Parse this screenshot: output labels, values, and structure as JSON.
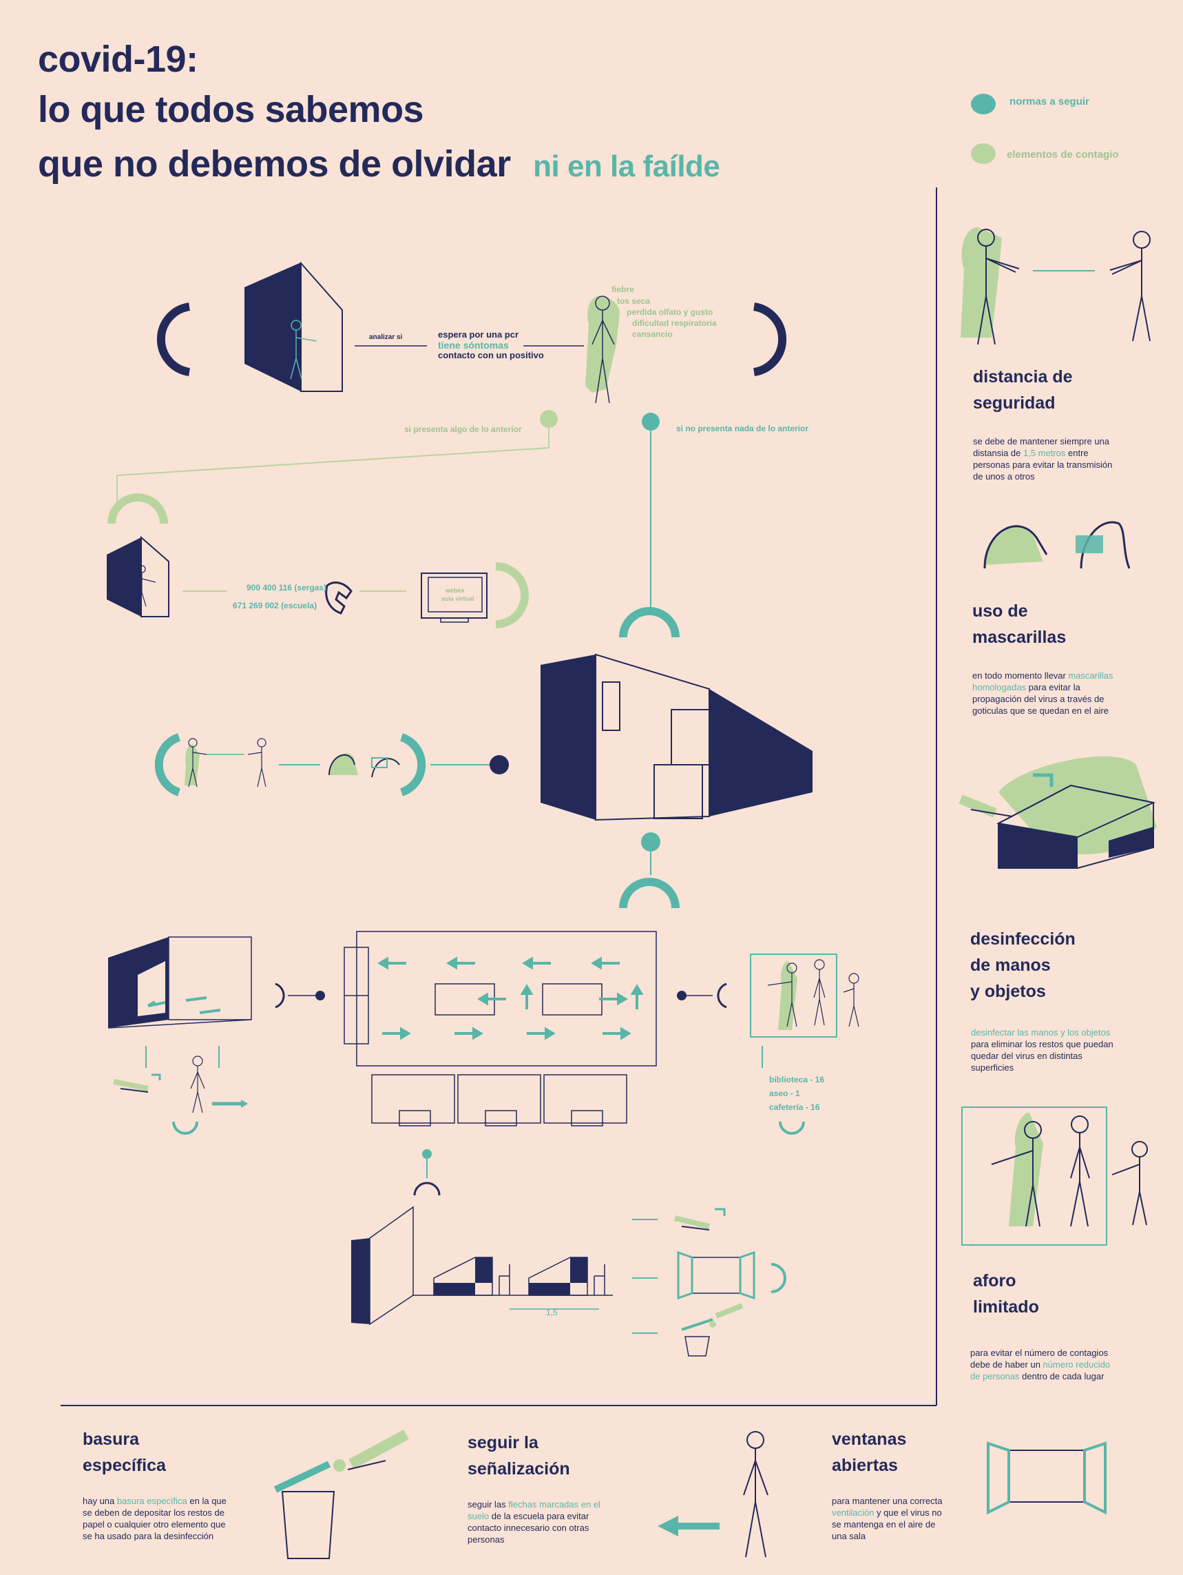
{
  "title": {
    "line1": "covid-19:",
    "line2": "lo que todos sabemos",
    "line3": "que no debemos de olvidar",
    "subtitle": "ni en la faílde"
  },
  "legend": {
    "normas": "normas a seguir",
    "contagio": "elementos de contagio",
    "normas_color": "#57b6a9",
    "contagio_color": "#b9d59f"
  },
  "flow": {
    "analizar": "analizar si",
    "conditions": [
      "espera por una pcr",
      "tiene sóntomas",
      "contacto con un positivo"
    ],
    "symptoms": [
      "fiebre",
      "tos seca",
      "perdida olfato y gusto",
      "dificultad respiratoria",
      "cansancio"
    ],
    "si_presenta": "si presenta algo de lo anterior",
    "no_presenta": "si no presenta nada de lo anterior",
    "phone_sergas": "900 400 116 (sergas)",
    "phone_escuela": "671 269 002 (escuela)",
    "screen_line1": "webex",
    "screen_line2": "aula virtual",
    "aforo_lines": [
      "biblioteca - 16",
      "aseo - 1",
      "cafetería - 16"
    ],
    "distance_label": "1,5"
  },
  "sidebar": {
    "distancia": {
      "heading1": "distancia de",
      "heading2": "seguridad",
      "t1": "se debe de mantener siempre una",
      "t2a": "distansia de ",
      "t2b": "1,5 metros",
      "t2c": "  entre",
      "t3": "personas para evitar la transmisión",
      "t4": "de unos a otros"
    },
    "mascarillas": {
      "heading1": "uso de",
      "heading2": "mascarillas",
      "t1a": "en todo momento llevar ",
      "t1b": "mascarillas",
      "t2a": "homologadas",
      "t2b": " para evitar la",
      "t3": "propagación del virus a través de",
      "t4": "goticulas que se quedan en el aire"
    },
    "desinfeccion": {
      "heading1": "desinfección",
      "heading2": "de manos",
      "heading3": "y objetos",
      "t1": "desinfectar las manos y los objetos",
      "t2": "para eliminar los restos que puedan",
      "t3": "quedar del virus en distintas",
      "t4": "superficies"
    },
    "aforo": {
      "heading1": "aforo",
      "heading2": "limitado",
      "t1": "para evitar el número de contagios",
      "t2a": "debe de haber un ",
      "t2b": "número reducido",
      "t3a": "de personas",
      "t3b": " dentro de cada lugar"
    }
  },
  "bottom": {
    "basura": {
      "heading1": "basura",
      "heading2": "específica",
      "t1a": "hay una ",
      "t1b": "basura específica",
      "t1c": " en la que",
      "t2": "se deben de depositar los restos de",
      "t3": "papel o cualquier otro elemento que",
      "t4": "se ha usado para la desinfección"
    },
    "senalizacion": {
      "heading1": "seguir la",
      "heading2": "señalización",
      "t1a": "seguir las ",
      "t1b": "flechas marcadas en el",
      "t2a": "suelo",
      "t2b": " de la escuela para evitar",
      "t3": "contacto innecesario con otras",
      "t4": "personas"
    },
    "ventanas": {
      "heading1": "ventanas",
      "heading2": "abiertas",
      "t1": "para mantener una correcta",
      "t2a": "ventilación",
      "t2b": " y que el virus no",
      "t3": "se mantenga en el aire de",
      "t4": "una sala"
    }
  }
}
